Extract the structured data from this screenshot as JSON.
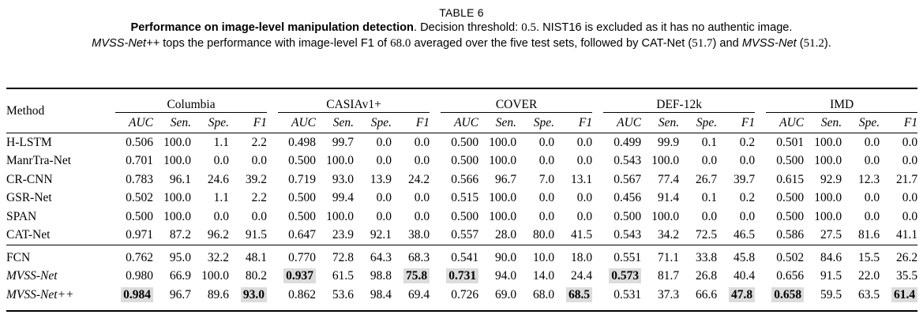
{
  "title": "TABLE 6",
  "caption": {
    "line1": [
      {
        "text": "Performance on image-level manipulation detection",
        "style": "bold"
      },
      {
        "text": ". Decision threshold: ",
        "style": "normal"
      },
      {
        "text": "0.5",
        "style": "math"
      },
      {
        "text": ". NIST16 is excluded as it has no authentic image.",
        "style": "normal"
      }
    ],
    "line2": [
      {
        "text": "MVSS-Net++",
        "style": "italic"
      },
      {
        "text": " tops the performance with image-level F1 of ",
        "style": "normal"
      },
      {
        "text": "68.0",
        "style": "math"
      },
      {
        "text": " averaged over the five test sets, followed by CAT-Net (",
        "style": "normal"
      },
      {
        "text": "51.7",
        "style": "math"
      },
      {
        "text": ") and ",
        "style": "normal"
      },
      {
        "text": "MVSS-Net",
        "style": "italic"
      },
      {
        "text": " (",
        "style": "normal"
      },
      {
        "text": "51.2",
        "style": "math"
      },
      {
        "text": ").",
        "style": "normal"
      }
    ]
  },
  "colors": {
    "highlight_bg": "#dcdcdc",
    "rule": "#000000"
  },
  "chart_data": {
    "type": "table",
    "method_header": "Method",
    "groups": [
      "Columbia",
      "CASIAv1+",
      "COVER",
      "DEF-12k",
      "IMD"
    ],
    "metrics": [
      "AUC",
      "Sen.",
      "Spe.",
      "F1"
    ],
    "rows": [
      {
        "method": "H-LSTM",
        "italic": false,
        "rule_above": false,
        "values": [
          "0.506",
          "100.0",
          "1.1",
          "2.2",
          "0.498",
          "99.7",
          "0.0",
          "0.0",
          "0.500",
          "100.0",
          "0.0",
          "0.0",
          "0.499",
          "99.9",
          "0.1",
          "0.2",
          "0.501",
          "100.0",
          "0.0",
          "0.0"
        ],
        "highlight": []
      },
      {
        "method": "ManrTra-Net",
        "italic": false,
        "rule_above": false,
        "values": [
          "0.701",
          "100.0",
          "0.0",
          "0.0",
          "0.500",
          "100.0",
          "0.0",
          "0.0",
          "0.500",
          "100.0",
          "0.0",
          "0.0",
          "0.543",
          "100.0",
          "0.0",
          "0.0",
          "0.500",
          "100.0",
          "0.0",
          "0.0"
        ],
        "highlight": []
      },
      {
        "method": "CR-CNN",
        "italic": false,
        "rule_above": false,
        "values": [
          "0.783",
          "96.1",
          "24.6",
          "39.2",
          "0.719",
          "93.0",
          "13.9",
          "24.2",
          "0.566",
          "96.7",
          "7.0",
          "13.1",
          "0.567",
          "77.4",
          "26.7",
          "39.7",
          "0.615",
          "92.9",
          "12.3",
          "21.7"
        ],
        "highlight": []
      },
      {
        "method": "GSR-Net",
        "italic": false,
        "rule_above": false,
        "values": [
          "0.502",
          "100.0",
          "1.1",
          "2.2",
          "0.500",
          "99.4",
          "0.0",
          "0.0",
          "0.515",
          "100.0",
          "0.0",
          "0.0",
          "0.456",
          "91.4",
          "0.1",
          "0.2",
          "0.500",
          "100.0",
          "0.0",
          "0.0"
        ],
        "highlight": []
      },
      {
        "method": "SPAN",
        "italic": false,
        "rule_above": false,
        "values": [
          "0.500",
          "100.0",
          "0.0",
          "0.0",
          "0.500",
          "100.0",
          "0.0",
          "0.0",
          "0.500",
          "100.0",
          "0.0",
          "0.0",
          "0.500",
          "100.0",
          "0.0",
          "0.0",
          "0.500",
          "100.0",
          "0.0",
          "0.0"
        ],
        "highlight": []
      },
      {
        "method": "CAT-Net",
        "italic": false,
        "rule_above": false,
        "values": [
          "0.971",
          "87.2",
          "96.2",
          "91.5",
          "0.647",
          "23.9",
          "92.1",
          "38.0",
          "0.557",
          "28.0",
          "80.0",
          "41.5",
          "0.543",
          "34.2",
          "72.5",
          "46.5",
          "0.586",
          "27.5",
          "81.6",
          "41.1"
        ],
        "highlight": []
      },
      {
        "method": "FCN",
        "italic": false,
        "rule_above": true,
        "values": [
          "0.762",
          "95.0",
          "32.2",
          "48.1",
          "0.770",
          "72.8",
          "64.3",
          "68.3",
          "0.541",
          "90.0",
          "10.0",
          "18.0",
          "0.551",
          "71.1",
          "33.8",
          "45.8",
          "0.502",
          "84.6",
          "15.5",
          "26.2"
        ],
        "highlight": []
      },
      {
        "method": "MVSS-Net",
        "italic": true,
        "rule_above": false,
        "values": [
          "0.980",
          "66.9",
          "100.0",
          "80.2",
          "0.937",
          "61.5",
          "98.8",
          "75.8",
          "0.731",
          "94.0",
          "14.0",
          "24.4",
          "0.573",
          "81.7",
          "26.8",
          "40.4",
          "0.656",
          "91.5",
          "22.0",
          "35.5"
        ],
        "highlight": [
          4,
          7,
          8,
          12
        ]
      },
      {
        "method": "MVSS-Net++",
        "italic": true,
        "rule_above": false,
        "values": [
          "0.984",
          "96.7",
          "89.6",
          "93.0",
          "0.862",
          "53.6",
          "98.4",
          "69.4",
          "0.726",
          "69.0",
          "68.0",
          "68.5",
          "0.531",
          "37.3",
          "66.6",
          "47.8",
          "0.658",
          "59.5",
          "63.5",
          "61.4"
        ],
        "highlight": [
          0,
          3,
          11,
          15,
          16,
          19
        ]
      }
    ]
  }
}
